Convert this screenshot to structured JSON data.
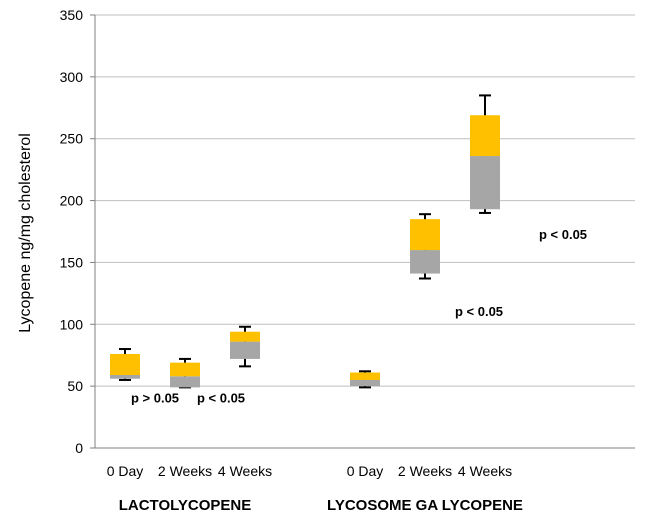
{
  "chart_data": {
    "type": "box",
    "ylabel": "Lycopene ng/mg cholesterol",
    "ylim": [
      0,
      350
    ],
    "yticks": [
      0,
      50,
      100,
      150,
      200,
      250,
      300,
      350
    ],
    "grid": true,
    "colors": {
      "upper": "#FFC000",
      "lower": "#A6A6A6",
      "whisker": "#000000",
      "grid": "#BFBFBF"
    },
    "groups": [
      {
        "label": "LACTOLYCOPENE",
        "boxes": [
          {
            "category": "0 Day",
            "whisker_low": 55,
            "q1": 56,
            "median": 59,
            "q3": 76,
            "whisker_high": 80
          },
          {
            "category": "2 Weeks",
            "whisker_low": 49,
            "q1": 49,
            "median": 58,
            "q3": 69,
            "whisker_high": 72
          },
          {
            "category": "4 Weeks",
            "whisker_low": 66,
            "q1": 72,
            "median": 86,
            "q3": 94,
            "whisker_high": 98
          }
        ]
      },
      {
        "label": "LYCOSOME GA LYCOPENE",
        "boxes": [
          {
            "category": "0 Day",
            "whisker_low": 49,
            "q1": 50,
            "median": 55,
            "q3": 61,
            "whisker_high": 62
          },
          {
            "category": "2 Weeks",
            "whisker_low": 137,
            "q1": 141,
            "median": 160,
            "q3": 185,
            "whisker_high": 189
          },
          {
            "category": "4 Weeks",
            "whisker_low": 190,
            "q1": 193,
            "median": 236,
            "q3": 269,
            "whisker_high": 285
          }
        ]
      }
    ],
    "annotations": [
      {
        "text": "p > 0.05",
        "x_slot": 1.5,
        "y": 40
      },
      {
        "text": "p < 0.05",
        "x_slot": 2.6,
        "y": 40
      },
      {
        "text": "p < 0.05",
        "x_slot": 6.9,
        "y": 110
      },
      {
        "text": "p < 0.05",
        "x_slot": 8.3,
        "y": 172
      }
    ]
  }
}
